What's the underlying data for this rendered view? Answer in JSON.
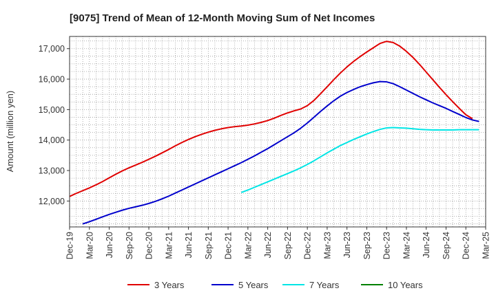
{
  "chart_data": {
    "type": "line",
    "title": "[9075]  Trend of Mean of 12-Month Moving Sum of Net Incomes",
    "xlabel": "",
    "ylabel": "Amount (million yen)",
    "ylim": [
      11150,
      17400
    ],
    "yticks": [
      12000,
      13000,
      14000,
      15000,
      16000,
      17000
    ],
    "ytick_labels": [
      "12,000",
      "13,000",
      "14,000",
      "15,000",
      "16,000",
      "17,000"
    ],
    "xlim": [
      "2019-12",
      "2025-03"
    ],
    "xtick_labels": [
      "Dec-19",
      "Mar-20",
      "Jun-20",
      "Sep-20",
      "Dec-20",
      "Mar-21",
      "Jun-21",
      "Sep-21",
      "Dec-21",
      "Mar-22",
      "Jun-22",
      "Sep-22",
      "Dec-22",
      "Mar-23",
      "Jun-23",
      "Sep-23",
      "Dec-23",
      "Mar-24",
      "Jun-24",
      "Sep-24",
      "Dec-24",
      "Mar-25"
    ],
    "grid": true,
    "legend_position": "bottom",
    "series": [
      {
        "name": "3 Years",
        "color": "#e00000",
        "points": [
          [
            "2019-12",
            12150
          ],
          [
            "2020-01",
            12250
          ],
          [
            "2020-02",
            12340
          ],
          [
            "2020-03",
            12430
          ],
          [
            "2020-04",
            12530
          ],
          [
            "2020-05",
            12640
          ],
          [
            "2020-06",
            12760
          ],
          [
            "2020-07",
            12880
          ],
          [
            "2020-08",
            12990
          ],
          [
            "2020-09",
            13090
          ],
          [
            "2020-10",
            13180
          ],
          [
            "2020-11",
            13270
          ],
          [
            "2020-12",
            13370
          ],
          [
            "2021-01",
            13470
          ],
          [
            "2021-02",
            13580
          ],
          [
            "2021-03",
            13690
          ],
          [
            "2021-04",
            13810
          ],
          [
            "2021-05",
            13920
          ],
          [
            "2021-06",
            14020
          ],
          [
            "2021-07",
            14110
          ],
          [
            "2021-08",
            14190
          ],
          [
            "2021-09",
            14260
          ],
          [
            "2021-10",
            14320
          ],
          [
            "2021-11",
            14370
          ],
          [
            "2021-12",
            14410
          ],
          [
            "2022-01",
            14440
          ],
          [
            "2022-02",
            14460
          ],
          [
            "2022-03",
            14490
          ],
          [
            "2022-04",
            14530
          ],
          [
            "2022-05",
            14580
          ],
          [
            "2022-06",
            14640
          ],
          [
            "2022-07",
            14720
          ],
          [
            "2022-08",
            14810
          ],
          [
            "2022-09",
            14890
          ],
          [
            "2022-10",
            14960
          ],
          [
            "2022-11",
            15020
          ],
          [
            "2022-12",
            15130
          ],
          [
            "2023-01",
            15300
          ],
          [
            "2023-02",
            15520
          ],
          [
            "2023-03",
            15750
          ],
          [
            "2023-04",
            15980
          ],
          [
            "2023-05",
            16200
          ],
          [
            "2023-06",
            16400
          ],
          [
            "2023-07",
            16580
          ],
          [
            "2023-08",
            16740
          ],
          [
            "2023-09",
            16890
          ],
          [
            "2023-10",
            17030
          ],
          [
            "2023-11",
            17170
          ],
          [
            "2023-12",
            17240
          ],
          [
            "2024-01",
            17200
          ],
          [
            "2024-02",
            17080
          ],
          [
            "2024-03",
            16910
          ],
          [
            "2024-04",
            16710
          ],
          [
            "2024-05",
            16480
          ],
          [
            "2024-06",
            16230
          ],
          [
            "2024-07",
            15980
          ],
          [
            "2024-08",
            15730
          ],
          [
            "2024-09",
            15490
          ],
          [
            "2024-10",
            15260
          ],
          [
            "2024-11",
            15040
          ],
          [
            "2024-12",
            14830
          ],
          [
            "2025-01",
            14700
          ]
        ]
      },
      {
        "name": "5 Years",
        "color": "#0000cc",
        "points": [
          [
            "2020-02",
            11250
          ],
          [
            "2020-03",
            11320
          ],
          [
            "2020-04",
            11400
          ],
          [
            "2020-05",
            11480
          ],
          [
            "2020-06",
            11560
          ],
          [
            "2020-07",
            11630
          ],
          [
            "2020-08",
            11700
          ],
          [
            "2020-09",
            11760
          ],
          [
            "2020-10",
            11810
          ],
          [
            "2020-11",
            11860
          ],
          [
            "2020-12",
            11920
          ],
          [
            "2021-01",
            11990
          ],
          [
            "2021-02",
            12070
          ],
          [
            "2021-03",
            12160
          ],
          [
            "2021-04",
            12260
          ],
          [
            "2021-05",
            12360
          ],
          [
            "2021-06",
            12460
          ],
          [
            "2021-07",
            12560
          ],
          [
            "2021-08",
            12660
          ],
          [
            "2021-09",
            12760
          ],
          [
            "2021-10",
            12860
          ],
          [
            "2021-11",
            12960
          ],
          [
            "2021-12",
            13060
          ],
          [
            "2022-01",
            13160
          ],
          [
            "2022-02",
            13260
          ],
          [
            "2022-03",
            13370
          ],
          [
            "2022-04",
            13480
          ],
          [
            "2022-05",
            13600
          ],
          [
            "2022-06",
            13720
          ],
          [
            "2022-07",
            13850
          ],
          [
            "2022-08",
            13980
          ],
          [
            "2022-09",
            14110
          ],
          [
            "2022-10",
            14240
          ],
          [
            "2022-11",
            14390
          ],
          [
            "2022-12",
            14560
          ],
          [
            "2023-01",
            14750
          ],
          [
            "2023-02",
            14940
          ],
          [
            "2023-03",
            15120
          ],
          [
            "2023-04",
            15290
          ],
          [
            "2023-05",
            15440
          ],
          [
            "2023-06",
            15560
          ],
          [
            "2023-07",
            15660
          ],
          [
            "2023-08",
            15750
          ],
          [
            "2023-09",
            15820
          ],
          [
            "2023-10",
            15880
          ],
          [
            "2023-11",
            15920
          ],
          [
            "2023-12",
            15910
          ],
          [
            "2024-01",
            15850
          ],
          [
            "2024-02",
            15750
          ],
          [
            "2024-03",
            15640
          ],
          [
            "2024-04",
            15530
          ],
          [
            "2024-05",
            15420
          ],
          [
            "2024-06",
            15320
          ],
          [
            "2024-07",
            15220
          ],
          [
            "2024-08",
            15130
          ],
          [
            "2024-09",
            15040
          ],
          [
            "2024-10",
            14940
          ],
          [
            "2024-11",
            14840
          ],
          [
            "2024-12",
            14740
          ],
          [
            "2025-01",
            14660
          ],
          [
            "2025-02",
            14610
          ]
        ]
      },
      {
        "name": "7 Years",
        "color": "#00e5e5",
        "points": [
          [
            "2022-02",
            12280
          ],
          [
            "2022-03",
            12360
          ],
          [
            "2022-04",
            12450
          ],
          [
            "2022-05",
            12540
          ],
          [
            "2022-06",
            12630
          ],
          [
            "2022-07",
            12720
          ],
          [
            "2022-08",
            12810
          ],
          [
            "2022-09",
            12900
          ],
          [
            "2022-10",
            12990
          ],
          [
            "2022-11",
            13090
          ],
          [
            "2022-12",
            13200
          ],
          [
            "2023-01",
            13320
          ],
          [
            "2023-02",
            13450
          ],
          [
            "2023-03",
            13580
          ],
          [
            "2023-04",
            13700
          ],
          [
            "2023-05",
            13820
          ],
          [
            "2023-06",
            13920
          ],
          [
            "2023-07",
            14020
          ],
          [
            "2023-08",
            14110
          ],
          [
            "2023-09",
            14200
          ],
          [
            "2023-10",
            14280
          ],
          [
            "2023-11",
            14350
          ],
          [
            "2023-12",
            14400
          ],
          [
            "2024-01",
            14410
          ],
          [
            "2024-02",
            14400
          ],
          [
            "2024-03",
            14390
          ],
          [
            "2024-04",
            14370
          ],
          [
            "2024-05",
            14350
          ],
          [
            "2024-06",
            14340
          ],
          [
            "2024-07",
            14330
          ],
          [
            "2024-08",
            14330
          ],
          [
            "2024-09",
            14330
          ],
          [
            "2024-10",
            14330
          ],
          [
            "2024-11",
            14340
          ],
          [
            "2024-12",
            14340
          ],
          [
            "2025-01",
            14340
          ],
          [
            "2025-02",
            14340
          ]
        ]
      },
      {
        "name": "10 Years",
        "color": "#008000",
        "points": []
      }
    ]
  }
}
